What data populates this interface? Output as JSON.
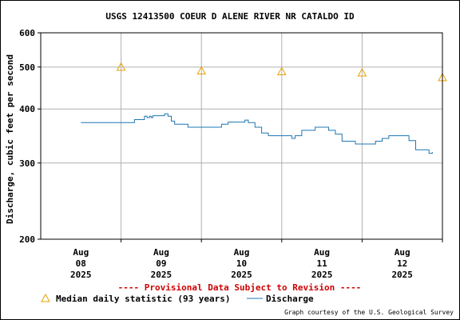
{
  "chart_data": {
    "type": "line",
    "title": "USGS 12413500 COEUR D ALENE RIVER NR CATALDO ID",
    "ylabel": "Discharge, cubic feet per second",
    "xlabel": "",
    "y_scale": "log",
    "ylim": [
      200,
      600
    ],
    "y_ticks": [
      "600",
      "500",
      "400",
      "300",
      "200"
    ],
    "x_ticks": [
      {
        "month": "Aug",
        "day": "08",
        "year": "2025"
      },
      {
        "month": "Aug",
        "day": "09",
        "year": "2025"
      },
      {
        "month": "Aug",
        "day": "10",
        "year": "2025"
      },
      {
        "month": "Aug",
        "day": "11",
        "year": "2025"
      },
      {
        "month": "Aug",
        "day": "12",
        "year": "2025"
      }
    ],
    "grid": true,
    "series": [
      {
        "name": "Discharge",
        "color": "#1f77b4",
        "style": "line",
        "x": [
          "2025-08-07 12:00",
          "2025-08-07 21:00",
          "2025-08-08 00:00",
          "2025-08-08 02:00",
          "2025-08-08 04:00",
          "2025-08-08 06:00",
          "2025-08-08 07:00",
          "2025-08-08 07:45",
          "2025-08-08 08:30",
          "2025-08-08 09:00",
          "2025-08-08 09:30",
          "2025-08-08 10:00",
          "2025-08-08 11:00",
          "2025-08-08 12:00",
          "2025-08-08 13:00",
          "2025-08-08 14:00",
          "2025-08-08 15:00",
          "2025-08-08 16:00",
          "2025-08-08 18:00",
          "2025-08-08 20:00",
          "2025-08-08 21:00",
          "2025-08-08 22:00",
          "2025-08-09 00:00",
          "2025-08-09 02:00",
          "2025-08-09 04:00",
          "2025-08-09 06:00",
          "2025-08-09 08:00",
          "2025-08-09 10:00",
          "2025-08-09 12:00",
          "2025-08-09 13:00",
          "2025-08-09 14:00",
          "2025-08-09 15:00",
          "2025-08-09 16:00",
          "2025-08-09 18:00",
          "2025-08-09 20:00",
          "2025-08-09 22:00",
          "2025-08-10 00:00",
          "2025-08-10 02:00",
          "2025-08-10 03:00",
          "2025-08-10 04:00",
          "2025-08-10 06:00",
          "2025-08-10 08:00",
          "2025-08-10 10:00",
          "2025-08-10 12:00",
          "2025-08-10 14:00",
          "2025-08-10 16:00",
          "2025-08-10 18:00",
          "2025-08-10 20:00",
          "2025-08-10 22:00",
          "2025-08-11 00:00",
          "2025-08-11 02:00",
          "2025-08-11 04:00",
          "2025-08-11 06:00",
          "2025-08-11 08:00",
          "2025-08-11 10:00",
          "2025-08-11 12:00",
          "2025-08-11 14:00",
          "2025-08-11 16:00",
          "2025-08-11 18:00",
          "2025-08-11 19:00",
          "2025-08-11 20:00",
          "2025-08-11 21:00"
        ],
        "y": [
          372,
          372,
          372,
          372,
          378,
          378,
          385,
          382,
          385,
          382,
          386,
          386,
          386,
          386,
          390,
          385,
          375,
          369,
          369,
          363,
          363,
          363,
          363,
          363,
          363,
          369,
          373,
          373,
          373,
          377,
          372,
          372,
          363,
          352,
          347,
          347,
          347,
          347,
          342,
          347,
          357,
          357,
          363,
          363,
          357,
          350,
          337,
          337,
          332,
          332,
          332,
          337,
          342,
          347,
          347,
          347,
          338,
          322,
          322,
          322,
          316,
          318
        ]
      },
      {
        "name": "Median daily statistic (93 years)",
        "color": "#e8a000",
        "style": "triangle",
        "x": [
          "2025-08-08 00:00",
          "2025-08-09 00:00",
          "2025-08-10 00:00",
          "2025-08-11 00:00",
          "2025-08-12 00:00"
        ],
        "y": [
          500,
          490,
          488,
          485,
          473
        ]
      }
    ]
  },
  "provisional_note": "---- Provisional Data Subject to Revision ----",
  "credit": "Graph courtesy of the U.S. Geological Survey",
  "colors": {
    "provisional": "#cc0000",
    "grid": "#b0b0b0"
  }
}
